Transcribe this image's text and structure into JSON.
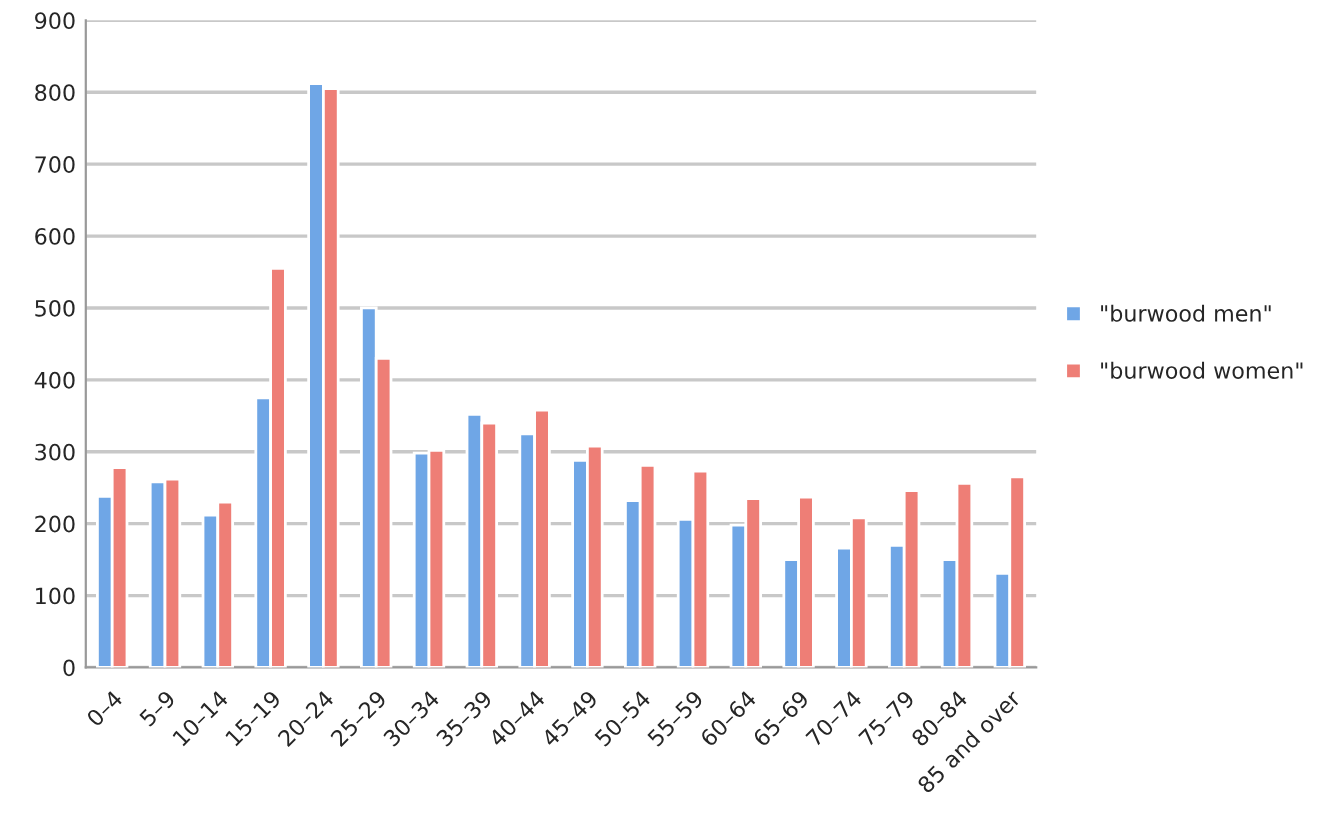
{
  "chart_data": {
    "type": "bar",
    "categories": [
      "0–4",
      "5–9",
      "10–14",
      "15–19",
      "20–24",
      "25–29",
      "30–34",
      "35–39",
      "40–44",
      "45–49",
      "50–54",
      "55–59",
      "60–64",
      "65–69",
      "70–74",
      "75–79",
      "80–84",
      "85 and over"
    ],
    "series": [
      {
        "name": "\"burwood men\"",
        "color": "#6fa6e6",
        "values": [
          238,
          258,
          212,
          375,
          812,
          500,
          298,
          352,
          325,
          288,
          232,
          206,
          198,
          150,
          166,
          170,
          150,
          131
        ]
      },
      {
        "name": "\"burwood women\"",
        "color": "#ee7e76",
        "values": [
          278,
          262,
          230,
          555,
          805,
          430,
          302,
          340,
          358,
          308,
          281,
          273,
          235,
          237,
          208,
          246,
          256,
          265
        ]
      }
    ],
    "ylim": [
      0,
      900
    ],
    "yticks": [
      0,
      100,
      200,
      300,
      400,
      500,
      600,
      700,
      800,
      900
    ],
    "grid": "y",
    "legend": "right"
  }
}
